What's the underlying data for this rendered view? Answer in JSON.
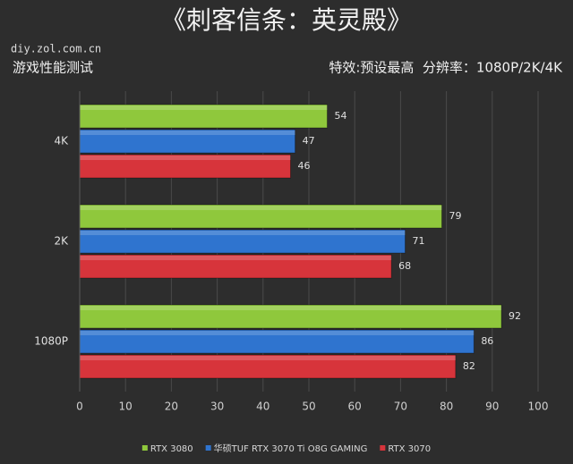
{
  "chart_data": {
    "type": "hbar",
    "title": "《刺客信条：英灵殿》",
    "watermark": "diy.zol.com.cn",
    "subtitle": "游戏性能测试",
    "settings": "特效:预设最高  分辨率：1080P/2K/4K",
    "categories": [
      "4K",
      "2K",
      "1080P"
    ],
    "series": [
      {
        "name": "RTX 3080",
        "color": "#8fc83c",
        "values": [
          54,
          79,
          92
        ]
      },
      {
        "name": "华硕TUF RTX 3070 Ti O8G GAMING",
        "color": "#2f74cf",
        "values": [
          47,
          71,
          86
        ]
      },
      {
        "name": "RTX 3070",
        "color": "#d7343b",
        "values": [
          46,
          68,
          82
        ]
      }
    ],
    "xlim": [
      0,
      100
    ],
    "xticks": [
      0,
      10,
      20,
      30,
      40,
      50,
      60,
      70,
      80,
      90,
      100
    ],
    "grid": true,
    "legend": "bottom"
  }
}
